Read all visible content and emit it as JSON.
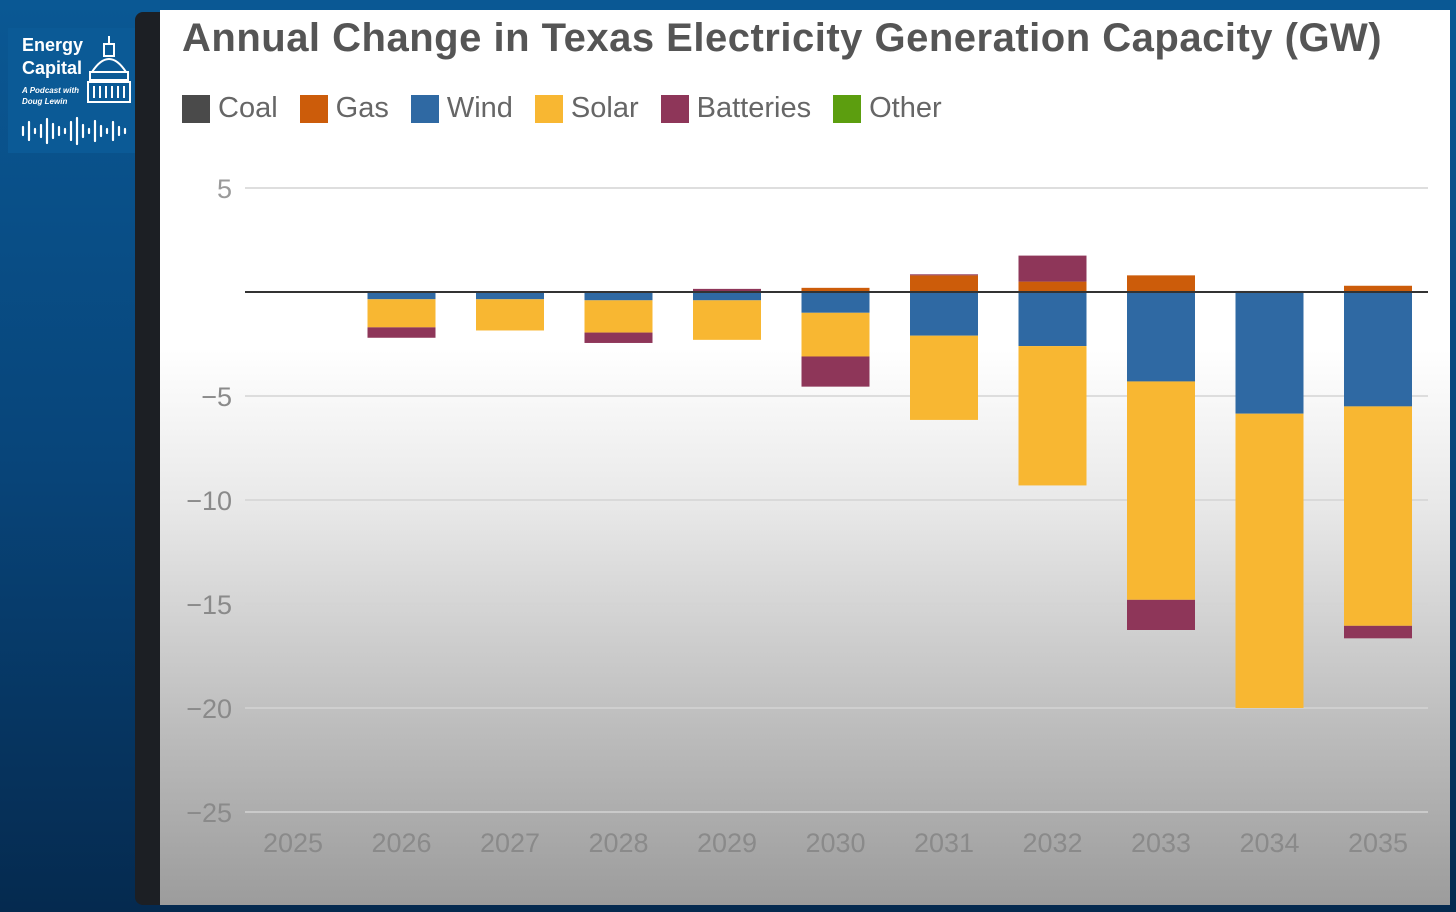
{
  "logo": {
    "line1": "Energy",
    "line2": "Capital",
    "sub1": "A Podcast with",
    "sub2": "Doug Lewin"
  },
  "chart_data": {
    "type": "bar",
    "stacked": true,
    "title": "Annual Change in Texas Electricity Generation Capacity (GW)",
    "xlabel": "",
    "ylabel": "",
    "ylim": [
      -25,
      5
    ],
    "yticks": [
      5,
      -5,
      -10,
      -15,
      -20,
      -25
    ],
    "ytick_labels": [
      "5",
      "−5",
      "−10",
      "−15",
      "−20",
      "−25"
    ],
    "grid": true,
    "legend_position": "top-left",
    "categories": [
      "2025",
      "2026",
      "2027",
      "2028",
      "2029",
      "2030",
      "2031",
      "2032",
      "2033",
      "2034",
      "2035"
    ],
    "series": [
      {
        "name": "Coal",
        "color": "#4a4a4a",
        "values": [
          0,
          0,
          0,
          0,
          0,
          0,
          0,
          0,
          0,
          0.05,
          0
        ]
      },
      {
        "name": "Gas",
        "color": "#cc5c0a",
        "values": [
          0,
          0,
          0,
          0,
          0,
          0.2,
          0.8,
          0.5,
          0.8,
          0,
          0.3
        ]
      },
      {
        "name": "Wind",
        "color": "#2f69a3",
        "values": [
          0,
          -0.35,
          -0.35,
          -0.4,
          -0.4,
          -1.0,
          -2.1,
          -2.6,
          -4.3,
          -5.85,
          -5.5
        ]
      },
      {
        "name": "Solar",
        "color": "#f8b732",
        "values": [
          0,
          -1.35,
          -1.5,
          -1.55,
          -1.9,
          -2.1,
          -4.05,
          -6.7,
          -10.5,
          -14.15,
          -10.55
        ]
      },
      {
        "name": "Batteries",
        "color": "#8e3659",
        "values": [
          0,
          -0.5,
          0,
          -0.5,
          0.15,
          -1.45,
          0.05,
          1.25,
          -1.45,
          0,
          -0.6
        ]
      },
      {
        "name": "Other",
        "color": "#5c9e0f",
        "values": [
          0,
          0,
          0,
          0,
          0,
          0,
          0,
          0,
          0,
          0,
          0
        ]
      }
    ]
  }
}
